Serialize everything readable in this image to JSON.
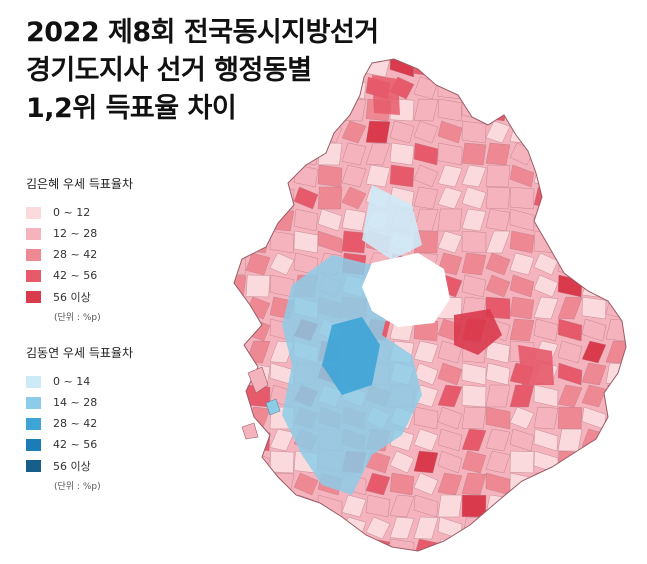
{
  "title": {
    "line1": "2022 제8회 전국동시지방선거",
    "line2": "경기도지사 선거 행정동별",
    "line3": "1,2위 득표율 차이"
  },
  "legend_red": {
    "heading": "김은혜 우세 득표율차",
    "items": [
      {
        "label": "0 ~ 12",
        "color": "#fadadd"
      },
      {
        "label": "12 ~ 28",
        "color": "#f5b3bd"
      },
      {
        "label": "28 ~ 42",
        "color": "#ee8994"
      },
      {
        "label": "42 ~ 56",
        "color": "#e65a6b"
      },
      {
        "label": "56 이상",
        "color": "#d93a4c"
      }
    ],
    "unit": "(단위 : %p)"
  },
  "legend_blue": {
    "heading": "김동연 우세 득표율차",
    "items": [
      {
        "label": "0 ~ 14",
        "color": "#cdeaf7"
      },
      {
        "label": "14 ~ 28",
        "color": "#8ccce8"
      },
      {
        "label": "28 ~ 42",
        "color": "#3ea4d6"
      },
      {
        "label": "42 ~ 56",
        "color": "#1b7cb8"
      },
      {
        "label": "56 이상",
        "color": "#175e8a"
      }
    ],
    "unit": "(단위 : %p)"
  }
}
